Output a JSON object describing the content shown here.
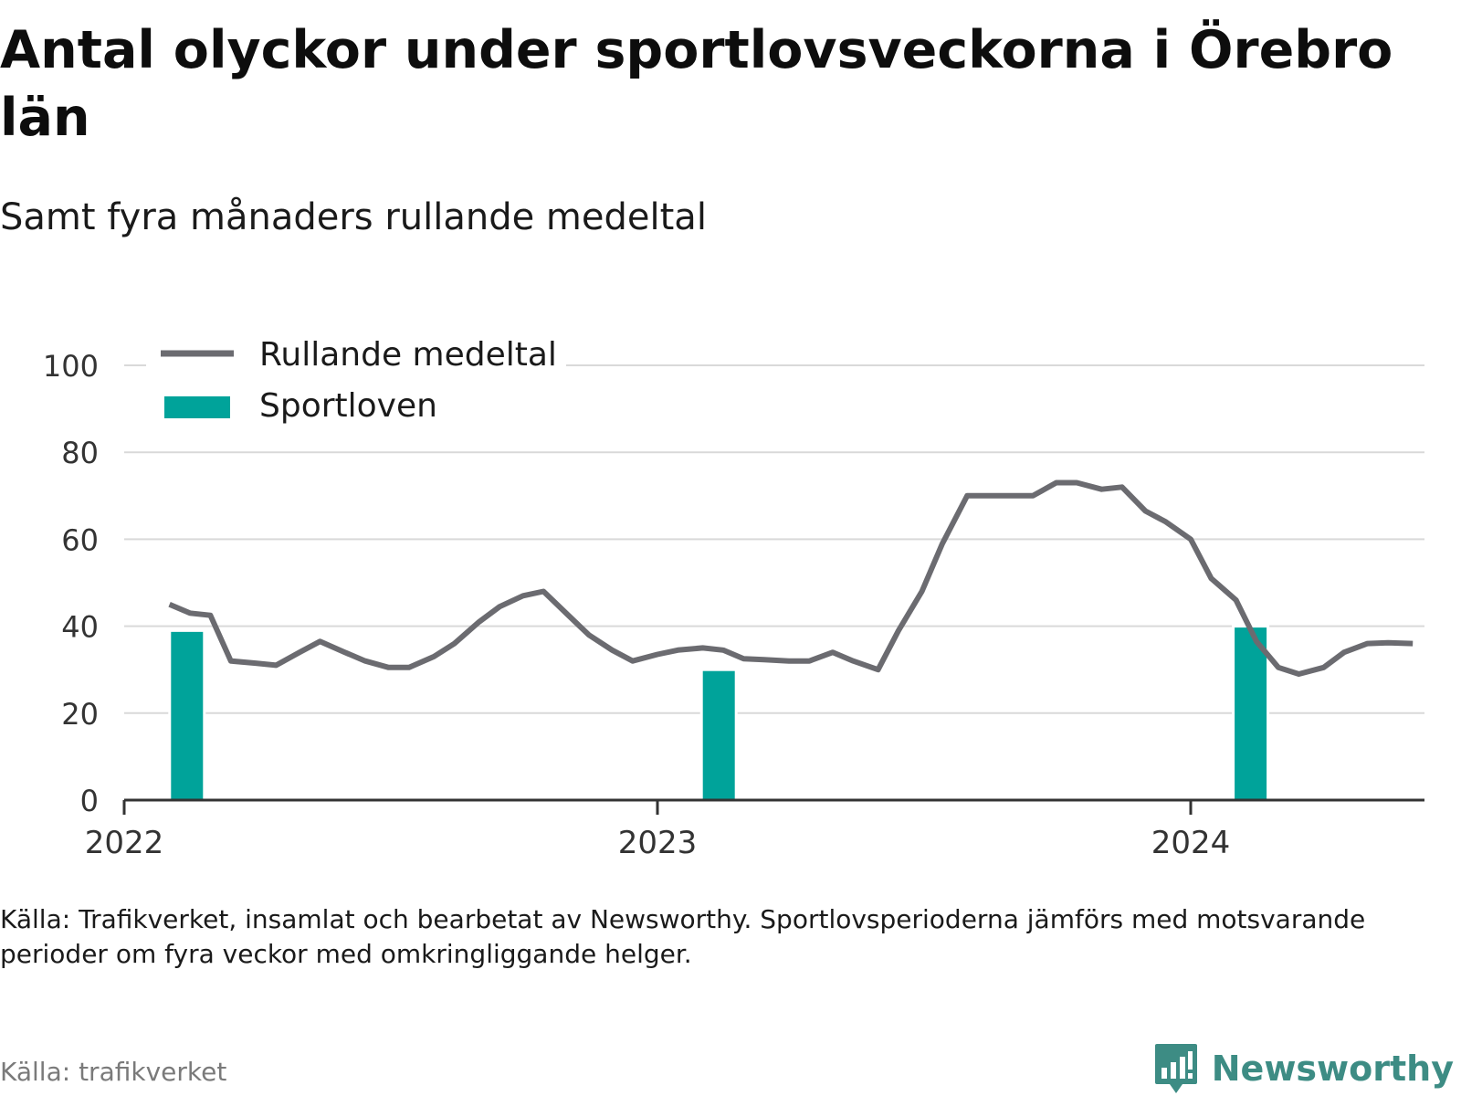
{
  "title": "Antal olyckor under sportlovsveckorna i Örebro län",
  "subtitle": "Samt fyra månaders rullande medeltal",
  "footnote": "Källa: Trafikverket, insamlat och bearbetat av Newsworthy. Sportlovsperioderna jämförs med motsvarande perioder om fyra veckor med omkringliggande helger.",
  "source": "Källa: trafikverket",
  "brand": "Newsworthy",
  "colors": {
    "line": "#6b6b70",
    "bar": "#00a39a",
    "grid": "#d9d9d9",
    "axis": "#333333",
    "brand": "#3d8c84"
  },
  "chart_data": {
    "type": "line",
    "xlim": [
      "2022-01-01",
      "2024-06-09"
    ],
    "ylim": [
      0,
      100
    ],
    "yticks": [
      0,
      20,
      40,
      60,
      80,
      100
    ],
    "xticks": [
      {
        "date": "2022-01-01",
        "label": "2022"
      },
      {
        "date": "2023-01-01",
        "label": "2023"
      },
      {
        "date": "2024-01-01",
        "label": "2024"
      }
    ],
    "grid": true,
    "legend_position": "top-left",
    "series": [
      {
        "name": "Rullande medeltal",
        "kind": "line",
        "points": [
          [
            "2022-02-01",
            45
          ],
          [
            "2022-02-15",
            43
          ],
          [
            "2022-03-01",
            42.5
          ],
          [
            "2022-03-15",
            32
          ],
          [
            "2022-04-01",
            31.5
          ],
          [
            "2022-04-15",
            31
          ],
          [
            "2022-05-01",
            34
          ],
          [
            "2022-05-15",
            36.5
          ],
          [
            "2022-06-01",
            34
          ],
          [
            "2022-06-15",
            32
          ],
          [
            "2022-07-01",
            30.5
          ],
          [
            "2022-07-15",
            30.5
          ],
          [
            "2022-08-01",
            33
          ],
          [
            "2022-08-15",
            36
          ],
          [
            "2022-09-01",
            41
          ],
          [
            "2022-09-15",
            44.5
          ],
          [
            "2022-10-01",
            47
          ],
          [
            "2022-10-15",
            48
          ],
          [
            "2022-11-01",
            42.5
          ],
          [
            "2022-11-15",
            38
          ],
          [
            "2022-12-01",
            34.5
          ],
          [
            "2022-12-15",
            32
          ],
          [
            "2023-01-01",
            33.5
          ],
          [
            "2023-01-15",
            34.5
          ],
          [
            "2023-02-01",
            35
          ],
          [
            "2023-02-15",
            34.5
          ],
          [
            "2023-03-01",
            32.5
          ],
          [
            "2023-03-15",
            32.3
          ],
          [
            "2023-04-01",
            32
          ],
          [
            "2023-04-15",
            32
          ],
          [
            "2023-05-01",
            34
          ],
          [
            "2023-05-15",
            32
          ],
          [
            "2023-06-01",
            30
          ],
          [
            "2023-06-15",
            39
          ],
          [
            "2023-07-01",
            48
          ],
          [
            "2023-07-15",
            59
          ],
          [
            "2023-08-01",
            70
          ],
          [
            "2023-08-15",
            70
          ],
          [
            "2023-09-01",
            70
          ],
          [
            "2023-09-15",
            70
          ],
          [
            "2023-10-01",
            73
          ],
          [
            "2023-10-15",
            73
          ],
          [
            "2023-11-01",
            71.5
          ],
          [
            "2023-11-15",
            72
          ],
          [
            "2023-12-01",
            66.5
          ],
          [
            "2023-12-15",
            64
          ],
          [
            "2024-01-01",
            60
          ],
          [
            "2024-01-15",
            51
          ],
          [
            "2024-02-01",
            46
          ],
          [
            "2024-02-15",
            36.5
          ],
          [
            "2024-03-01",
            30.5
          ],
          [
            "2024-03-15",
            29
          ],
          [
            "2024-04-01",
            30.5
          ],
          [
            "2024-04-15",
            34
          ],
          [
            "2024-05-01",
            36
          ],
          [
            "2024-05-15",
            36.2
          ],
          [
            "2024-06-01",
            36
          ]
        ]
      },
      {
        "name": "Sportloven",
        "kind": "bar",
        "points": [
          [
            "2022-02-13",
            39
          ],
          [
            "2023-02-12",
            30
          ],
          [
            "2024-02-11",
            40
          ]
        ]
      }
    ]
  }
}
